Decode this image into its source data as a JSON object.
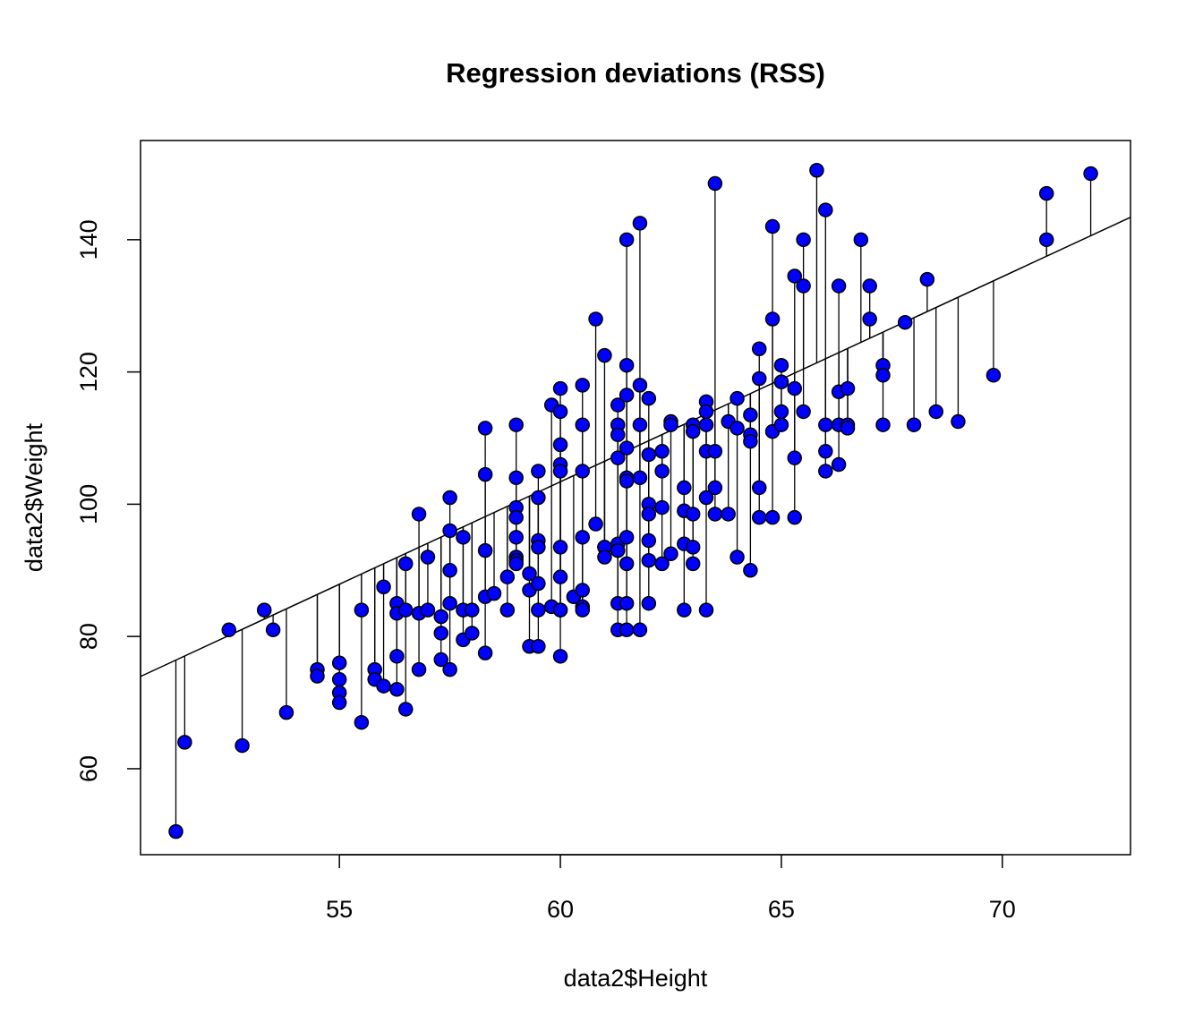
{
  "chart_data": {
    "type": "scatter",
    "title": "Regression deviations (RSS)",
    "xlabel": "data2$Height",
    "ylabel": "data2$Weight",
    "xlim": [
      50.5,
      72.9
    ],
    "ylim": [
      47.0,
      155.0
    ],
    "xticks": [
      55,
      60,
      65,
      70
    ],
    "yticks": [
      60,
      80,
      100,
      120,
      140
    ],
    "grid": false,
    "legend": "none",
    "point_color": "#0000ff",
    "point_edge_color": "#000000",
    "line_color": "#000000",
    "regression_line": {
      "intercept": -82.6,
      "slope": 3.1
    },
    "series": [
      {
        "x": [
          51.3,
          51.5,
          52.5,
          52.8,
          53.3,
          53.5,
          53.8,
          54.5,
          54.5,
          55.0,
          55.0,
          55.0,
          55.0,
          55.5,
          55.5,
          55.8,
          55.8,
          56.0,
          56.0,
          56.3,
          56.3,
          56.3,
          56.3,
          56.5,
          56.5,
          56.5,
          56.8,
          56.8,
          56.8,
          57.0,
          57.0,
          57.3,
          57.3,
          57.3,
          57.5,
          57.5,
          57.5,
          57.5,
          57.5,
          57.8,
          57.8,
          57.8,
          58.0,
          58.0,
          58.3,
          58.3,
          58.3,
          58.3,
          58.3,
          58.5,
          58.8,
          58.8,
          59.0,
          59.0,
          59.0,
          59.0,
          59.0,
          59.0,
          59.0,
          59.0,
          59.3,
          59.3,
          59.3,
          59.5,
          59.5,
          59.5,
          59.5,
          59.5,
          59.5,
          59.5,
          59.8,
          59.8,
          60.0,
          60.0,
          60.0,
          60.0,
          60.0,
          60.0,
          60.0,
          60.0,
          60.0,
          60.0,
          60.3,
          60.5,
          60.5,
          60.5,
          60.5,
          60.5,
          60.5,
          60.5,
          60.8,
          60.8,
          61.0,
          61.0,
          61.0,
          61.0,
          61.3,
          61.3,
          61.3,
          61.3,
          61.3,
          61.3,
          61.3,
          61.3,
          61.5,
          61.5,
          61.5,
          61.5,
          61.5,
          61.5,
          61.5,
          61.5,
          61.5,
          61.5,
          61.8,
          61.8,
          61.8,
          61.8,
          61.8,
          62.0,
          62.0,
          62.0,
          62.0,
          62.0,
          62.0,
          62.0,
          62.3,
          62.3,
          62.3,
          62.3,
          62.5,
          62.5,
          62.5,
          62.8,
          62.8,
          62.8,
          62.8,
          63.0,
          63.0,
          63.0,
          63.0,
          63.0,
          63.3,
          63.3,
          63.3,
          63.3,
          63.3,
          63.3,
          63.5,
          63.5,
          63.5,
          63.5,
          63.8,
          63.8,
          64.0,
          64.0,
          64.0,
          64.3,
          64.3,
          64.3,
          64.3,
          64.5,
          64.5,
          64.5,
          64.5,
          64.8,
          64.8,
          64.8,
          64.8,
          65.0,
          65.0,
          65.0,
          65.0,
          65.0,
          65.3,
          65.3,
          65.3,
          65.3,
          65.5,
          65.5,
          65.5,
          65.8,
          66.0,
          66.0,
          66.0,
          66.0,
          66.3,
          66.3,
          66.3,
          66.3,
          66.5,
          66.5,
          66.5,
          66.8,
          67.0,
          67.0,
          67.3,
          67.3,
          67.3,
          67.8,
          68.0,
          68.3,
          68.5,
          69.0,
          69.8,
          71.0,
          71.0,
          72.0
        ],
        "y": [
          50.5,
          64.0,
          81.0,
          63.5,
          84.0,
          81.0,
          68.5,
          75.0,
          74.0,
          76.0,
          73.5,
          71.5,
          70.0,
          84.0,
          67.0,
          75.0,
          73.5,
          87.5,
          72.5,
          85.0,
          83.5,
          77.0,
          72.0,
          91.0,
          84.0,
          69.0,
          98.5,
          83.5,
          75.0,
          92.0,
          84.0,
          83.0,
          80.5,
          76.5,
          101.0,
          96.0,
          90.0,
          85.0,
          75.0,
          95.0,
          84.0,
          79.5,
          84.0,
          80.5,
          111.5,
          104.5,
          93.0,
          86.0,
          77.5,
          86.5,
          89.0,
          84.0,
          112.0,
          104.0,
          99.5,
          98.0,
          95.0,
          92.0,
          91.5,
          91.0,
          89.5,
          87.0,
          78.5,
          105.0,
          101.0,
          94.5,
          93.5,
          88.0,
          84.0,
          78.5,
          115.0,
          84.5,
          117.5,
          114.0,
          109.0,
          106.0,
          105.0,
          93.5,
          89.0,
          84.0,
          84.0,
          77.0,
          86.0,
          118.0,
          112.0,
          105.0,
          95.0,
          87.0,
          84.5,
          84.0,
          128.0,
          97.0,
          93.5,
          122.5,
          93.5,
          92.0,
          81.0,
          115.0,
          112.0,
          110.5,
          107.0,
          94.0,
          93.0,
          85.0,
          81.0,
          140.0,
          121.0,
          116.5,
          108.5,
          104.0,
          103.5,
          95.0,
          91.0,
          85.0,
          81.0,
          142.5,
          118.0,
          112.0,
          104.0,
          85.0,
          116.0,
          107.5,
          100.0,
          98.5,
          94.5,
          91.5,
          91.0,
          108.0,
          105.0,
          99.5,
          92.5,
          112.5,
          112.0,
          84.0,
          102.5,
          99.0,
          94.0,
          93.5,
          112.0,
          111.0,
          98.5,
          91.0,
          84.0,
          115.5,
          114.0,
          112.0,
          108.0,
          101.0,
          148.5,
          108.0,
          102.5,
          98.5,
          112.5,
          98.5,
          116.0,
          111.5,
          92.0,
          113.5,
          110.5,
          109.5,
          90.0,
          123.5,
          119.0,
          102.5,
          98.0,
          142.0,
          128.0,
          111.0,
          98.0,
          121.0,
          118.5,
          114.0,
          112.0,
          118.5,
          134.5,
          117.5,
          107.0,
          98.0,
          140.0,
          133.0,
          114.0,
          150.5,
          144.5,
          112.0,
          108.0,
          105.0,
          133.0,
          117.0,
          112.0,
          106.0,
          117.5,
          112.0,
          111.5,
          140.0,
          133.0,
          128.0,
          121.0,
          119.5,
          112.0,
          127.5,
          112.0,
          134.0,
          114.0,
          112.5,
          119.5,
          147.0,
          140.0,
          150.0
        ]
      }
    ]
  }
}
